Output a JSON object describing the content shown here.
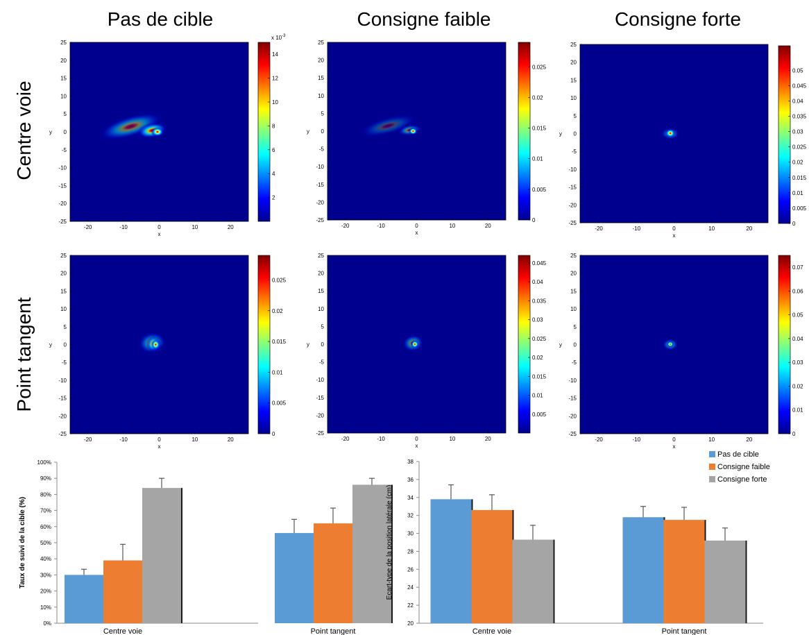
{
  "column_titles": [
    "Pas de cible",
    "Consigne faible",
    "Consigne forte"
  ],
  "row_titles": [
    "Centre voie",
    "Point tangent"
  ],
  "colors": {
    "pas_de_cible": "#5b9bd5",
    "consigne_faible": "#ed7d31",
    "consigne_forte": "#a5a5a5",
    "heatmap_background": "#00008f"
  },
  "chart_data": [
    {
      "type": "heatmap",
      "title": "Pas de cible",
      "row": "Centre voie",
      "xlabel": "x",
      "ylabel": "y",
      "xlim": [
        -25,
        25
      ],
      "ylim": [
        -25,
        25
      ],
      "xticks": [
        -20,
        -10,
        0,
        10,
        20
      ],
      "yticks": [
        25,
        20,
        15,
        10,
        5,
        0,
        -5,
        -10,
        -15,
        -20,
        -25
      ],
      "colorbar": {
        "min": 0,
        "max": 15,
        "exponent_label": "x 10",
        "exponent_sup": "-3",
        "ticks": [
          "14",
          "12",
          "10",
          "8",
          "6",
          "4",
          "2"
        ],
        "tick_values": [
          14,
          12,
          10,
          8,
          6,
          4,
          2
        ]
      },
      "blobs": [
        {
          "cx": -8,
          "cy": 1.5,
          "sx": 10,
          "sy": 3.2,
          "rot": -16,
          "a": 0.48
        },
        {
          "cx": -2,
          "cy": 0.4,
          "sx": 4.5,
          "sy": 2.2,
          "rot": -12,
          "a": 0.78
        },
        {
          "cx": -0.5,
          "cy": 0,
          "sx": 1.9,
          "sy": 1.4,
          "rot": 0,
          "a": 1.0
        }
      ]
    },
    {
      "type": "heatmap",
      "title": "Consigne faible",
      "row": "Centre voie",
      "xlabel": "x",
      "ylabel": "y",
      "xlim": [
        -25,
        25
      ],
      "ylim": [
        -25,
        25
      ],
      "xticks": [
        -20,
        -10,
        0,
        10,
        20
      ],
      "yticks": [
        25,
        20,
        15,
        10,
        5,
        0,
        -5,
        -10,
        -15,
        -20,
        -25
      ],
      "colorbar": {
        "min": 0,
        "max": 0.029,
        "exponent_label": "",
        "exponent_sup": "",
        "ticks": [
          "0.025",
          "0.02",
          "0.015",
          "0.01",
          "0.005",
          "0"
        ],
        "tick_values": [
          0.025,
          0.02,
          0.015,
          0.01,
          0.005,
          0
        ]
      },
      "blobs": [
        {
          "cx": -8,
          "cy": 1.5,
          "sx": 9,
          "sy": 2.6,
          "rot": -15,
          "a": 0.26
        },
        {
          "cx": -2,
          "cy": 0.3,
          "sx": 3.5,
          "sy": 1.6,
          "rot": -10,
          "a": 0.45
        },
        {
          "cx": -1,
          "cy": 0,
          "sx": 1.3,
          "sy": 1.1,
          "rot": 0,
          "a": 1.0
        }
      ]
    },
    {
      "type": "heatmap",
      "title": "Consigne forte",
      "row": "Centre voie",
      "xlabel": "x",
      "ylabel": "y",
      "xlim": [
        -25,
        25
      ],
      "ylim": [
        -25,
        25
      ],
      "xticks": [
        -20,
        -10,
        0,
        10,
        20
      ],
      "yticks": [
        25,
        20,
        15,
        10,
        5,
        0,
        -5,
        -10,
        -15,
        -20,
        -25
      ],
      "colorbar": {
        "min": 0,
        "max": 0.058,
        "exponent_label": "",
        "exponent_sup": "",
        "ticks": [
          "0.05",
          "0.045",
          "0.04",
          "0.035",
          "0.03",
          "0.025",
          "0.02",
          "0.015",
          "0.01",
          "0.005",
          "0"
        ],
        "tick_values": [
          0.05,
          0.045,
          0.04,
          0.035,
          0.03,
          0.025,
          0.02,
          0.015,
          0.01,
          0.005,
          0
        ]
      },
      "blobs": [
        {
          "cx": -1,
          "cy": 0,
          "sx": 2.6,
          "sy": 1.8,
          "rot": 0,
          "a": 0.45
        },
        {
          "cx": -1,
          "cy": 0.1,
          "sx": 1.4,
          "sy": 1.3,
          "rot": 0,
          "a": 1.0
        }
      ]
    },
    {
      "type": "heatmap",
      "title": "Pas de cible",
      "row": "Point tangent",
      "xlabel": "x",
      "ylabel": "y",
      "xlim": [
        -25,
        25
      ],
      "ylim": [
        -25,
        25
      ],
      "xticks": [
        -20,
        -10,
        0,
        10,
        20
      ],
      "yticks": [
        25,
        20,
        15,
        10,
        5,
        0,
        -5,
        -10,
        -15,
        -20,
        -25
      ],
      "colorbar": {
        "min": 0,
        "max": 0.029,
        "exponent_label": "",
        "exponent_sup": "",
        "ticks": [
          "0.025",
          "0.02",
          "0.015",
          "0.01",
          "0.005",
          "0"
        ],
        "tick_values": [
          0.025,
          0.02,
          0.015,
          0.01,
          0.005,
          0
        ]
      },
      "blobs": [
        {
          "cx": -2,
          "cy": 0.5,
          "sx": 4.2,
          "sy": 3.2,
          "rot": -10,
          "a": 0.5
        },
        {
          "cx": -1.5,
          "cy": 0.2,
          "sx": 2.2,
          "sy": 2.2,
          "rot": 0,
          "a": 0.78
        },
        {
          "cx": -1,
          "cy": 0,
          "sx": 1.3,
          "sy": 1.5,
          "rot": 0,
          "a": 1.0
        }
      ]
    },
    {
      "type": "heatmap",
      "title": "Consigne faible",
      "row": "Point tangent",
      "xlabel": "x",
      "ylabel": "y",
      "xlim": [
        -25,
        25
      ],
      "ylim": [
        -25,
        25
      ],
      "xticks": [
        -20,
        -10,
        0,
        10,
        20
      ],
      "yticks": [
        25,
        20,
        15,
        10,
        5,
        0,
        -5,
        -10,
        -15,
        -20,
        -25
      ],
      "colorbar": {
        "min": 0,
        "max": 0.047,
        "exponent_label": "",
        "exponent_sup": "",
        "ticks": [
          "0.045",
          "0.04",
          "0.035",
          "0.03",
          "0.025",
          "0.02",
          "0.015",
          "0.01",
          "0.005"
        ],
        "tick_values": [
          0.045,
          0.04,
          0.035,
          0.03,
          0.025,
          0.02,
          0.015,
          0.01,
          0.005
        ]
      },
      "blobs": [
        {
          "cx": -1,
          "cy": 0.3,
          "sx": 3.2,
          "sy": 2.6,
          "rot": -10,
          "a": 0.45
        },
        {
          "cx": -0.5,
          "cy": 0,
          "sx": 1.2,
          "sy": 1.2,
          "rot": 0,
          "a": 1.0
        }
      ]
    },
    {
      "type": "heatmap",
      "title": "Consigne forte",
      "row": "Point tangent",
      "xlabel": "x",
      "ylabel": "y",
      "xlim": [
        -25,
        25
      ],
      "ylim": [
        -25,
        25
      ],
      "xticks": [
        -20,
        -10,
        0,
        10,
        20
      ],
      "yticks": [
        25,
        20,
        15,
        10,
        5,
        0,
        -5,
        -10,
        -15,
        -20,
        -25
      ],
      "colorbar": {
        "min": 0,
        "max": 0.075,
        "exponent_label": "",
        "exponent_sup": "",
        "ticks": [
          "0.07",
          "0.06",
          "0.05",
          "0.04",
          "0.03",
          "0.02",
          "0.01",
          "0"
        ],
        "tick_values": [
          0.07,
          0.06,
          0.05,
          0.04,
          0.03,
          0.02,
          0.01,
          0
        ]
      },
      "blobs": [
        {
          "cx": -1,
          "cy": 0,
          "sx": 2.3,
          "sy": 1.8,
          "rot": 0,
          "a": 0.42
        },
        {
          "cx": -1,
          "cy": 0.1,
          "sx": 1.0,
          "sy": 0.9,
          "rot": 0,
          "a": 1.0
        }
      ]
    },
    {
      "type": "bar",
      "ylabel": "Taux de suivi de la cible (%)",
      "ylim": [
        0,
        100
      ],
      "yticks": [
        "0%",
        "10%",
        "20%",
        "30%",
        "40%",
        "50%",
        "60%",
        "70%",
        "80%",
        "90%",
        "100%"
      ],
      "ytick_values": [
        0,
        10,
        20,
        30,
        40,
        50,
        60,
        70,
        80,
        90,
        100
      ],
      "categories": [
        "Centre voie",
        "Point tangent"
      ],
      "series": [
        {
          "name": "Pas de cible",
          "values": [
            30,
            56
          ],
          "errors": [
            3.5,
            8.5
          ]
        },
        {
          "name": "Consigne faible",
          "values": [
            39,
            62
          ],
          "errors": [
            10,
            9.5
          ]
        },
        {
          "name": "Consigne forte",
          "values": [
            84,
            86
          ],
          "errors": [
            6,
            4
          ]
        }
      ]
    },
    {
      "type": "bar",
      "ylabel": "Ecart-type de la position latérale (cm)",
      "ylim": [
        20,
        38
      ],
      "yticks": [
        "20",
        "22",
        "24",
        "26",
        "28",
        "30",
        "32",
        "34",
        "36",
        "38"
      ],
      "ytick_values": [
        20,
        22,
        24,
        26,
        28,
        30,
        32,
        34,
        36,
        38
      ],
      "categories": [
        "Centre voie",
        "Point tangent"
      ],
      "legend": [
        "Pas de cible",
        "Consigne faible",
        "Consigne forte"
      ],
      "legend_position": "top-right",
      "series": [
        {
          "name": "Pas de cible",
          "values": [
            33.8,
            31.8
          ],
          "errors": [
            1.6,
            1.2
          ]
        },
        {
          "name": "Consigne faible",
          "values": [
            32.6,
            31.5
          ],
          "errors": [
            1.7,
            1.4
          ]
        },
        {
          "name": "Consigne forte",
          "values": [
            29.3,
            29.2
          ],
          "errors": [
            1.6,
            1.4
          ]
        }
      ]
    }
  ]
}
